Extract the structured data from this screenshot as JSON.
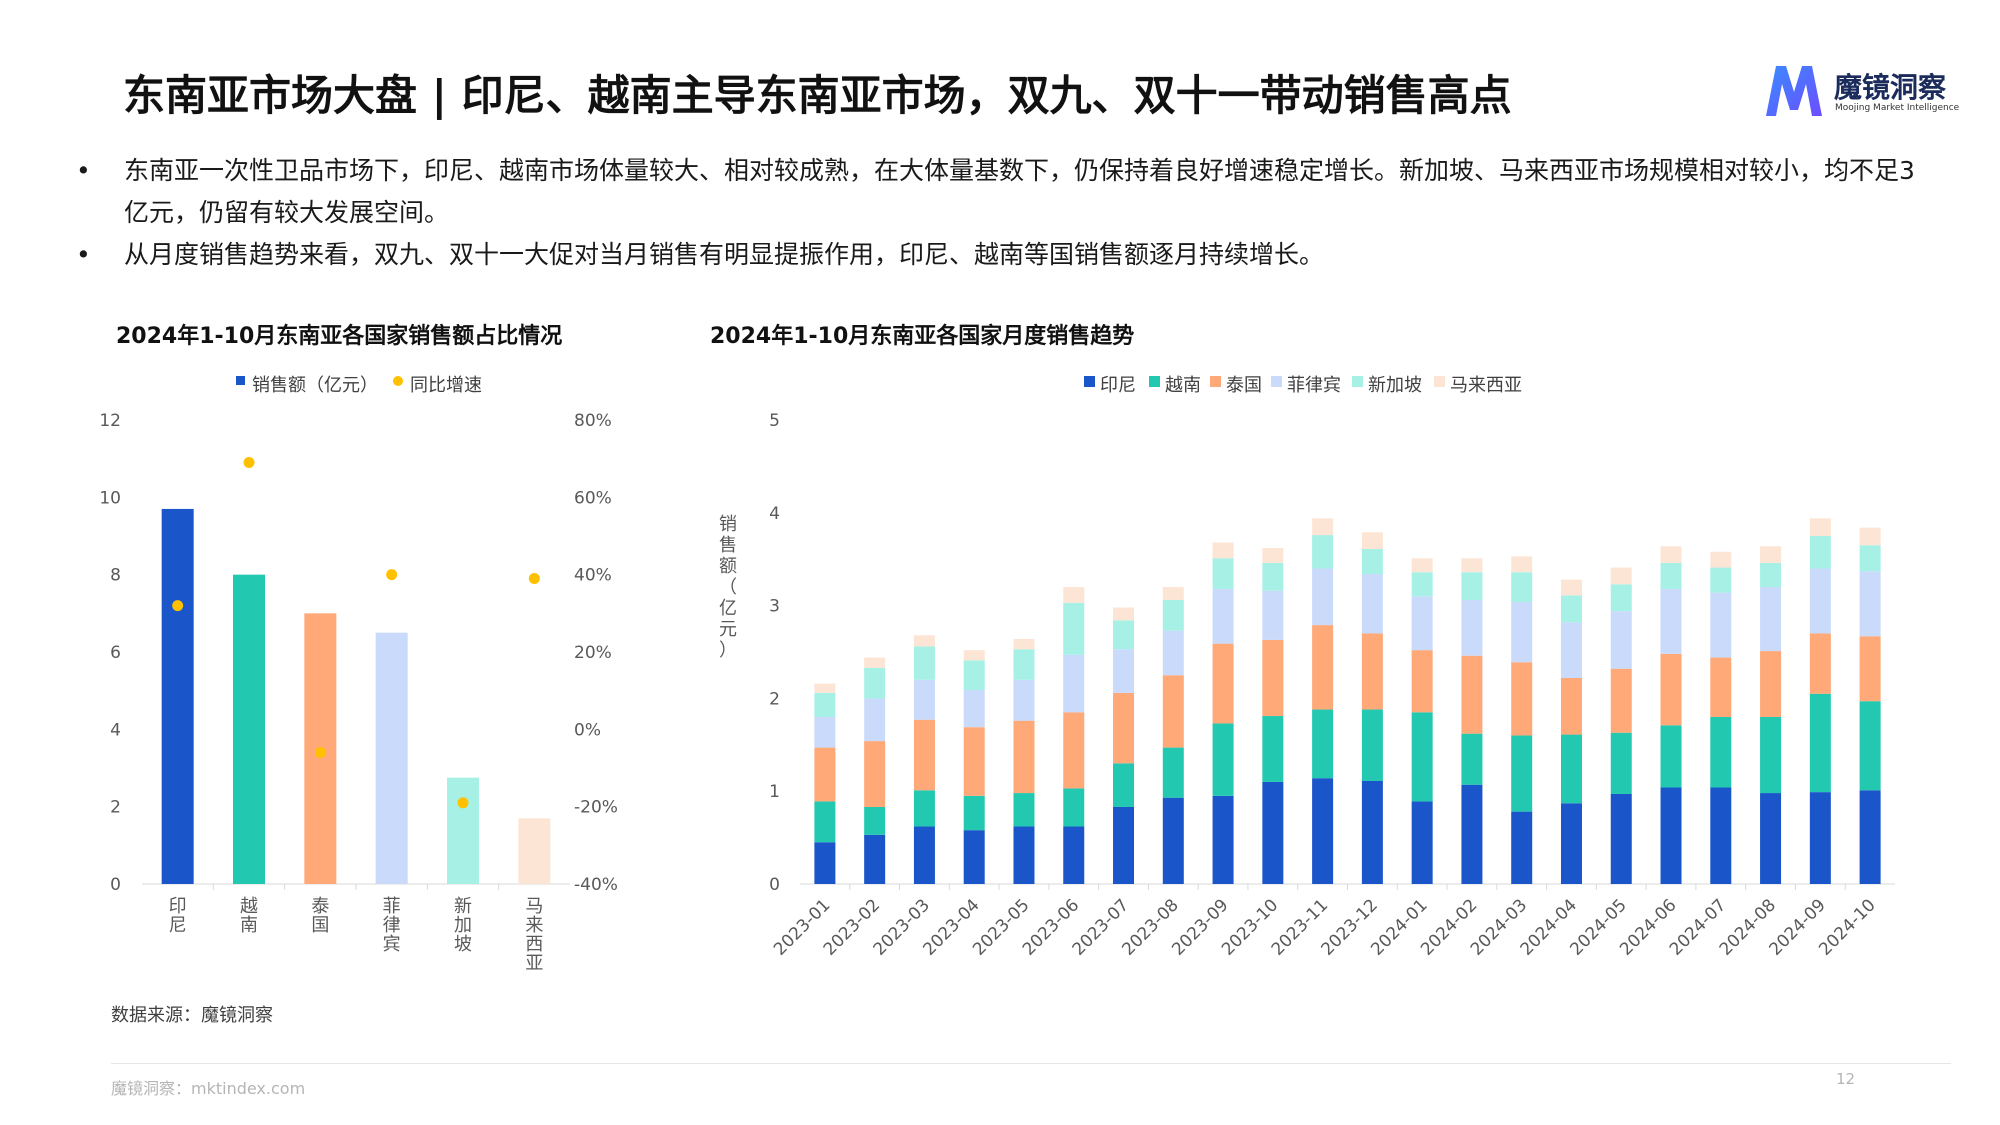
{
  "header": {
    "title": "东南亚市场大盘 | 印尼、越南主导东南亚市场，双九、双十一带动销售高点",
    "logo_name": "魔镜洞察",
    "logo_sub": "Moojing Market Intelligence",
    "logo_icon": "m-logo-icon"
  },
  "bullets": [
    "东南亚一次性卫品市场下，印尼、越南市场体量较大、相对较成熟，在大体量基数下，仍保持着良好增速稳定增长。新加坡、马来西亚市场规模相对较小，均不足3亿元，仍留有较大发展空间。",
    "从月度销售趋势来看，双九、双十一大促对当月销售有明显提振作用，印尼、越南等国销售额逐月持续增长。"
  ],
  "bullet_symbol": "•",
  "source": "数据来源：魔镜洞察",
  "footer": {
    "left": "魔镜洞察：mktindex.com",
    "page": "12"
  },
  "chart_data": [
    {
      "type": "bar",
      "title": "2024年1-10月东南亚各国家销售额占比情况",
      "categories": [
        "印尼",
        "越南",
        "泰国",
        "菲律宾",
        "新加坡",
        "马来西亚"
      ],
      "bar_colors": [
        "#1a56c9",
        "#22c9b0",
        "#ffa878",
        "#c9dafa",
        "#a6f0e6",
        "#fde5d5"
      ],
      "series": [
        {
          "name": "销售额（亿元）",
          "kind": "bar",
          "axis": "left",
          "color": "#1a56c9",
          "values": [
            9.7,
            8.0,
            7.0,
            6.5,
            2.75,
            1.7
          ]
        },
        {
          "name": "同比增速",
          "kind": "scatter",
          "axis": "right",
          "color": "#ffc000",
          "values": [
            32,
            69,
            -6,
            40,
            -19,
            39
          ]
        }
      ],
      "y_left": {
        "min": 0,
        "max": 12,
        "ticks": [
          "0",
          "2",
          "4",
          "6",
          "8",
          "10",
          "12"
        ]
      },
      "y_right": {
        "min": -40,
        "max": 80,
        "ticks": [
          "-40%",
          "-20%",
          "0%",
          "20%",
          "40%",
          "60%",
          "80%"
        ]
      },
      "legend_position": "top",
      "grid": false
    },
    {
      "type": "bar",
      "stacked": true,
      "title": "2024年1-10月东南亚各国家月度销售趋势",
      "ylabel": "销售额（亿元）",
      "categories": [
        "2023-01",
        "2023-02",
        "2023-03",
        "2023-04",
        "2023-05",
        "2023-06",
        "2023-07",
        "2023-08",
        "2023-09",
        "2023-10",
        "2023-11",
        "2023-12",
        "2024-01",
        "2024-02",
        "2024-03",
        "2024-04",
        "2024-05",
        "2024-06",
        "2024-07",
        "2024-08",
        "2024-09",
        "2024-10"
      ],
      "ylim": [
        0,
        5
      ],
      "y_ticks": [
        "0",
        "1",
        "2",
        "3",
        "4",
        "5"
      ],
      "legend_position": "top",
      "grid": false,
      "series": [
        {
          "name": "印尼",
          "color": "#1a56c9",
          "values": [
            0.45,
            0.53,
            0.62,
            0.58,
            0.62,
            0.62,
            0.83,
            0.93,
            0.95,
            1.1,
            1.14,
            1.11,
            0.89,
            1.07,
            0.78,
            0.87,
            0.97,
            1.04,
            1.04,
            0.98,
            0.99,
            1.01
          ]
        },
        {
          "name": "越南",
          "color": "#22c9b0",
          "values": [
            0.44,
            0.3,
            0.39,
            0.37,
            0.36,
            0.41,
            0.47,
            0.54,
            0.78,
            0.71,
            0.74,
            0.77,
            0.96,
            0.55,
            0.82,
            0.74,
            0.66,
            0.67,
            0.76,
            0.82,
            1.06,
            0.96
          ]
        },
        {
          "name": "泰国",
          "color": "#ffa878",
          "values": [
            0.58,
            0.71,
            0.76,
            0.74,
            0.78,
            0.82,
            0.76,
            0.78,
            0.86,
            0.82,
            0.91,
            0.82,
            0.67,
            0.84,
            0.79,
            0.61,
            0.69,
            0.77,
            0.64,
            0.71,
            0.65,
            0.7
          ]
        },
        {
          "name": "菲律宾",
          "color": "#c9dafa",
          "values": [
            0.33,
            0.46,
            0.43,
            0.4,
            0.44,
            0.62,
            0.47,
            0.48,
            0.59,
            0.53,
            0.61,
            0.64,
            0.58,
            0.6,
            0.65,
            0.6,
            0.62,
            0.7,
            0.7,
            0.69,
            0.7,
            0.7
          ]
        },
        {
          "name": "新加坡",
          "color": "#a6f0e6",
          "values": [
            0.26,
            0.33,
            0.36,
            0.32,
            0.33,
            0.56,
            0.31,
            0.33,
            0.33,
            0.3,
            0.36,
            0.27,
            0.26,
            0.3,
            0.32,
            0.29,
            0.29,
            0.28,
            0.27,
            0.26,
            0.35,
            0.28
          ]
        },
        {
          "name": "马来西亚",
          "color": "#fde5d5",
          "values": [
            0.1,
            0.11,
            0.12,
            0.11,
            0.11,
            0.17,
            0.14,
            0.14,
            0.17,
            0.16,
            0.18,
            0.18,
            0.15,
            0.15,
            0.17,
            0.17,
            0.18,
            0.18,
            0.17,
            0.18,
            0.19,
            0.19
          ]
        }
      ]
    }
  ]
}
